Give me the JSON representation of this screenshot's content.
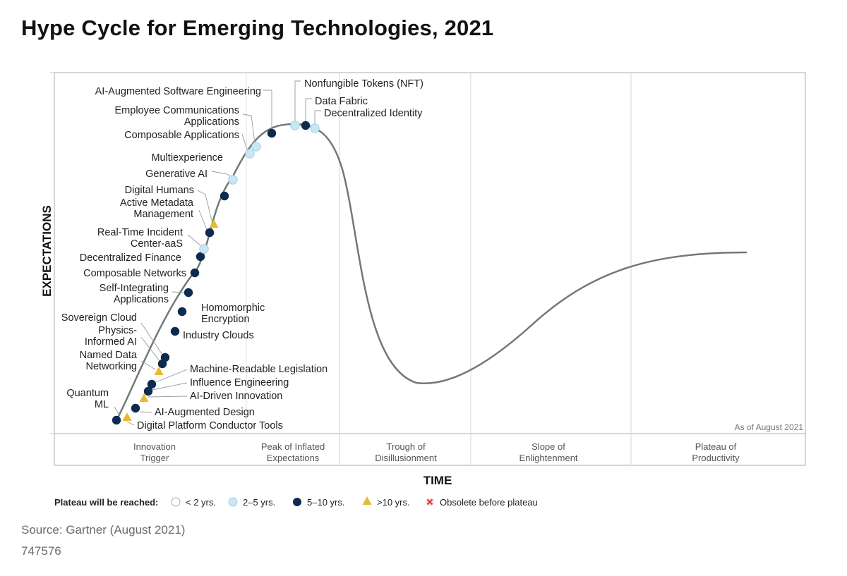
{
  "title": "Hype Cycle for Emerging Technologies, 2021",
  "source": "Source: Gartner (August 2021)",
  "doc_id": "747576",
  "colors": {
    "lt2": "#ffffff",
    "y2_5": "#c9e6f5",
    "y5_10": "#0d2a4f",
    "gt10": "#e8b931",
    "obsolete": "#d0312d",
    "curve": "#6f7a76",
    "border": "#c8c8c8"
  },
  "chart_data": {
    "type": "scatter",
    "title": "Hype Cycle for Emerging Technologies, 2021",
    "xlabel": "TIME",
    "ylabel": "EXPECTATIONS",
    "as_of": "As of August 2021",
    "phases": [
      {
        "name": "Innovation Trigger",
        "lines": [
          "Innovation",
          "Trigger"
        ]
      },
      {
        "name": "Peak of Inflated Expectations",
        "lines": [
          "Peak of Inflated",
          "Expectations"
        ]
      },
      {
        "name": "Trough of Disillusionment",
        "lines": [
          "Trough of",
          "Disillusionment"
        ]
      },
      {
        "name": "Slope of Enlightenment",
        "lines": [
          "Slope of",
          "Enlightenment"
        ]
      },
      {
        "name": "Plateau of Productivity",
        "lines": [
          "Plateau of",
          "Productivity"
        ]
      }
    ],
    "legend": {
      "heading": "Plateau will be reached:",
      "items": [
        {
          "key": "lt2",
          "label": "< 2 yrs."
        },
        {
          "key": "y2_5",
          "label": "2–5 yrs."
        },
        {
          "key": "y5_10",
          "label": "5–10 yrs."
        },
        {
          "key": "gt10",
          "label": ">10 yrs."
        },
        {
          "key": "obsolete",
          "label": "Obsolete before plateau"
        }
      ]
    },
    "technologies": [
      {
        "name": "Digital Platform Conductor Tools",
        "lines": [
          "Digital Platform Conductor Tools"
        ],
        "phase": "Innovation Trigger",
        "plateau": "gt10"
      },
      {
        "name": "Quantum ML",
        "lines": [
          "Quantum",
          "ML"
        ],
        "phase": "Innovation Trigger",
        "plateau": "y5_10"
      },
      {
        "name": "AI-Augmented Design",
        "lines": [
          "AI-Augmented Design"
        ],
        "phase": "Innovation Trigger",
        "plateau": "y5_10"
      },
      {
        "name": "AI-Driven Innovation",
        "lines": [
          "AI-Driven Innovation"
        ],
        "phase": "Innovation Trigger",
        "plateau": "gt10"
      },
      {
        "name": "Influence Engineering",
        "lines": [
          "Influence Engineering"
        ],
        "phase": "Innovation Trigger",
        "plateau": "y5_10"
      },
      {
        "name": "Machine-Readable Legislation",
        "lines": [
          "Machine-Readable Legislation"
        ],
        "phase": "Innovation Trigger",
        "plateau": "y5_10"
      },
      {
        "name": "Named Data Networking",
        "lines": [
          "Named Data",
          "Networking"
        ],
        "phase": "Innovation Trigger",
        "plateau": "gt10"
      },
      {
        "name": "Physics-Informed AI",
        "lines": [
          "Physics-",
          "Informed AI"
        ],
        "phase": "Innovation Trigger",
        "plateau": "y5_10"
      },
      {
        "name": "Sovereign Cloud",
        "lines": [
          "Sovereign Cloud"
        ],
        "phase": "Innovation Trigger",
        "plateau": "y5_10"
      },
      {
        "name": "Industry Clouds",
        "lines": [
          "Industry Clouds"
        ],
        "phase": "Innovation Trigger",
        "plateau": "y5_10"
      },
      {
        "name": "Homomorphic Encryption",
        "lines": [
          "Homomorphic",
          "Encryption"
        ],
        "phase": "Innovation Trigger",
        "plateau": "y5_10"
      },
      {
        "name": "Self-Integrating Applications",
        "lines": [
          "Self-Integrating",
          "Applications"
        ],
        "phase": "Innovation Trigger",
        "plateau": "y5_10"
      },
      {
        "name": "Composable Networks",
        "lines": [
          "Composable Networks"
        ],
        "phase": "Innovation Trigger",
        "plateau": "y5_10"
      },
      {
        "name": "Decentralized Finance",
        "lines": [
          "Decentralized Finance"
        ],
        "phase": "Innovation Trigger",
        "plateau": "y5_10"
      },
      {
        "name": "Real-Time Incident Center-aaS",
        "lines": [
          "Real-Time Incident",
          "Center-aaS"
        ],
        "phase": "Innovation Trigger",
        "plateau": "y2_5"
      },
      {
        "name": "Active Metadata Management",
        "lines": [
          "Active Metadata",
          "Management"
        ],
        "phase": "Innovation Trigger",
        "plateau": "y5_10"
      },
      {
        "name": "Digital Humans",
        "lines": [
          "Digital Humans"
        ],
        "phase": "Innovation Trigger",
        "plateau": "gt10"
      },
      {
        "name": "Multiexperience",
        "lines": [
          "Multiexperience"
        ],
        "phase": "Innovation Trigger",
        "plateau": "y5_10"
      },
      {
        "name": "Generative AI",
        "lines": [
          "Generative AI"
        ],
        "phase": "Innovation Trigger",
        "plateau": "y2_5"
      },
      {
        "name": "Composable Applications",
        "lines": [
          "Composable Applications"
        ],
        "phase": "Peak of Inflated Expectations",
        "plateau": "y2_5"
      },
      {
        "name": "Employee Communications Applications",
        "lines": [
          "Employee Communications",
          "Applications"
        ],
        "phase": "Peak of Inflated Expectations",
        "plateau": "y2_5"
      },
      {
        "name": "AI-Augmented Software Engineering",
        "lines": [
          "AI-Augmented Software Engineering"
        ],
        "phase": "Peak of Inflated Expectations",
        "plateau": "y5_10"
      },
      {
        "name": "Nonfungible Tokens (NFT)",
        "lines": [
          "Nonfungible Tokens (NFT)"
        ],
        "phase": "Peak of Inflated Expectations",
        "plateau": "y2_5"
      },
      {
        "name": "Data Fabric",
        "lines": [
          "Data Fabric"
        ],
        "phase": "Peak of Inflated Expectations",
        "plateau": "y5_10"
      },
      {
        "name": "Decentralized Identity",
        "lines": [
          "Decentralized Identity"
        ],
        "phase": "Peak of Inflated Expectations",
        "plateau": "y2_5"
      }
    ]
  }
}
